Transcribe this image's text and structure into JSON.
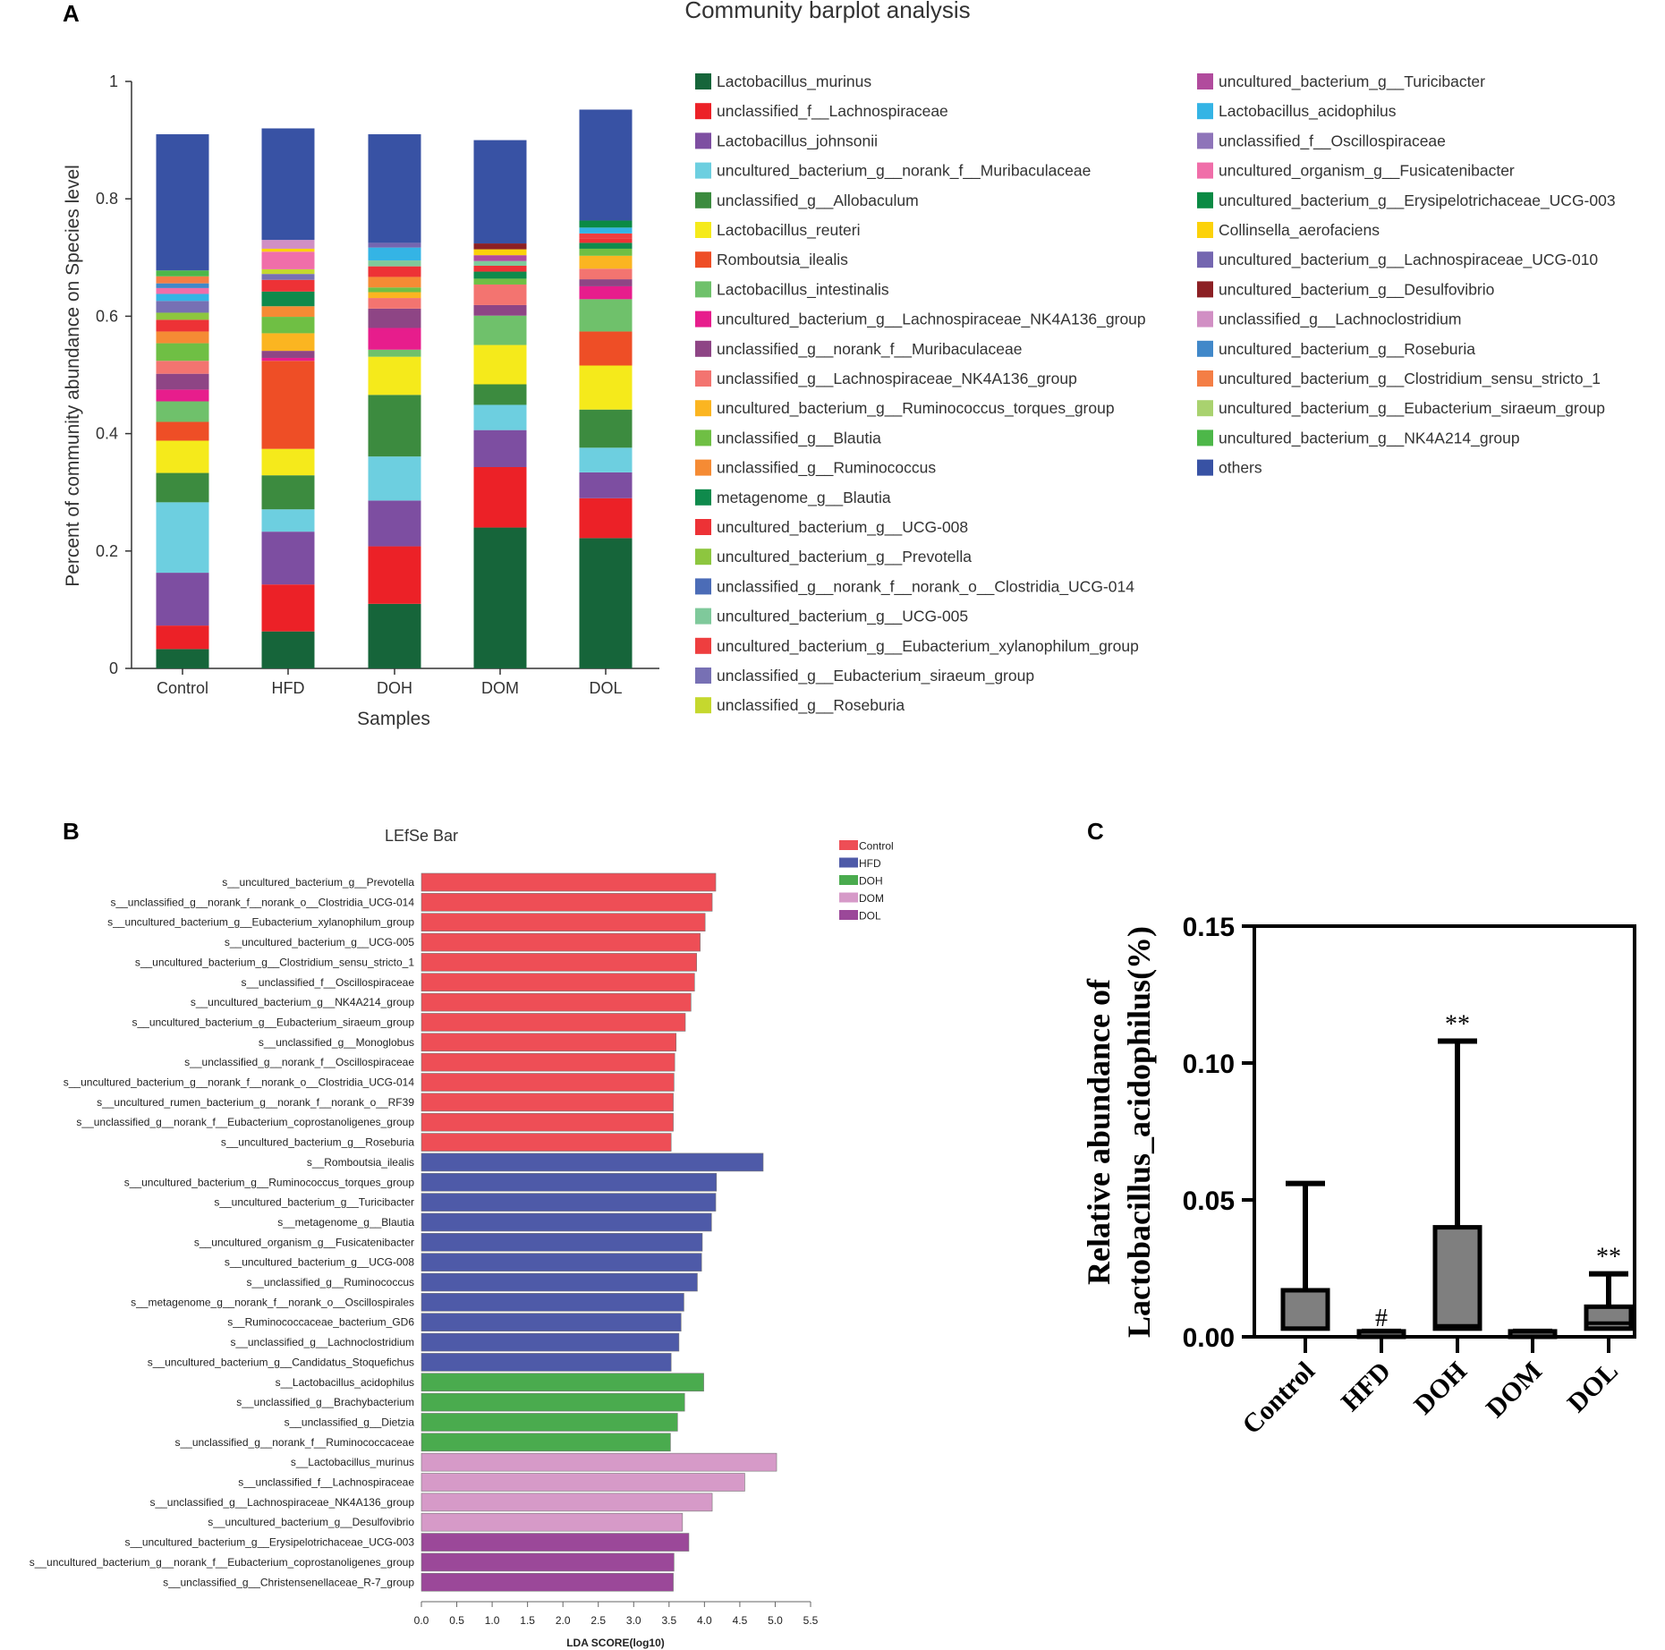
{
  "panels": {
    "a": "A",
    "b": "B",
    "c": "C"
  },
  "chart_data": [
    {
      "id": "A",
      "type": "bar",
      "stacked": true,
      "title": "Community barplot analysis",
      "xlabel": "Samples",
      "ylabel": "Percent of community abundance on Species level",
      "ylim": [
        0,
        1
      ],
      "yticks": [
        "0",
        "0.2",
        "0.4",
        "0.6",
        "0.8",
        "1"
      ],
      "categories": [
        "Control",
        "HFD",
        "DOH",
        "DOM",
        "DOL"
      ],
      "legend_position": "right",
      "series": [
        {
          "name": "Lactobacillus_murinus",
          "color": "#16653a",
          "values": [
            0.033,
            0.063,
            0.11,
            0.24,
            0.222
          ]
        },
        {
          "name": "unclassified_f__Lachnospiraceae",
          "color": "#ec2127",
          "values": [
            0.04,
            0.08,
            0.098,
            0.103,
            0.068
          ]
        },
        {
          "name": "Lactobacillus_johnsonii",
          "color": "#7d4ea1",
          "values": [
            0.09,
            0.09,
            0.078,
            0.063,
            0.044
          ]
        },
        {
          "name": "uncultured_bacterium_g__norank_f__Muribaculaceae",
          "color": "#6dcfe0",
          "values": [
            0.12,
            0.038,
            0.075,
            0.043,
            0.042
          ]
        },
        {
          "name": "unclassified_g__Allobaculum",
          "color": "#3c8b3f",
          "values": [
            0.05,
            0.058,
            0.105,
            0.035,
            0.065
          ]
        },
        {
          "name": "Lactobacillus_reuteri",
          "color": "#f5ea1b",
          "values": [
            0.055,
            0.045,
            0.065,
            0.067,
            0.075
          ]
        },
        {
          "name": "Romboutsia_ilealis",
          "color": "#ee4e26",
          "values": [
            0.032,
            0.15,
            0.0,
            0.0,
            0.058
          ]
        },
        {
          "name": "Lactobacillus_intestinalis",
          "color": "#6fc16b",
          "values": [
            0.035,
            0.0,
            0.012,
            0.05,
            0.055
          ]
        },
        {
          "name": "uncultured_bacterium_g__Lachnospiraceae_NK4A136_group",
          "color": "#e71d8c",
          "values": [
            0.02,
            0.005,
            0.037,
            0.0,
            0.022
          ]
        },
        {
          "name": "unclassified_g__norank_f__Muribaculaceae",
          "color": "#8e4585",
          "values": [
            0.027,
            0.012,
            0.033,
            0.018,
            0.012
          ]
        },
        {
          "name": "unclassified_g__Lachnospiraceae_NK4A136_group",
          "color": "#f37470",
          "values": [
            0.022,
            0.0,
            0.018,
            0.035,
            0.018
          ]
        },
        {
          "name": "uncultured_bacterium_g__Ruminococcus_torques_group",
          "color": "#fbb521",
          "values": [
            0.0,
            0.03,
            0.01,
            0.0,
            0.022
          ]
        },
        {
          "name": "unclassified_g__Blautia",
          "color": "#6fbf44",
          "values": [
            0.03,
            0.028,
            0.008,
            0.01,
            0.012
          ]
        },
        {
          "name": "unclassified_g__Ruminococcus",
          "color": "#f58b34",
          "values": [
            0.02,
            0.018,
            0.018,
            0.0,
            0.0
          ]
        },
        {
          "name": "metagenome_g__Blautia",
          "color": "#0f8a4c",
          "values": [
            0.0,
            0.025,
            0.0,
            0.012,
            0.01
          ]
        },
        {
          "name": "uncultured_bacterium_g__UCG-008",
          "color": "#ed3236",
          "values": [
            0.02,
            0.02,
            0.018,
            0.01,
            0.008
          ]
        },
        {
          "name": "uncultured_bacterium_g__Prevotella",
          "color": "#8dc63f",
          "values": [
            0.012,
            0.0,
            0.0,
            0.0,
            0.0
          ]
        },
        {
          "name": "unclassified_g__norank_f__norank_o__Clostridia_UCG-014",
          "color": "#4b6cb7",
          "values": [
            0.0,
            0.0,
            0.0,
            0.0,
            0.0
          ]
        },
        {
          "name": "uncultured_bacterium_g__UCG-005",
          "color": "#7fc99b",
          "values": [
            0.0,
            0.0,
            0.01,
            0.008,
            0.0
          ]
        },
        {
          "name": "uncultured_bacterium_g__Eubacterium_xylanophilum_group",
          "color": "#ee3e3f",
          "values": [
            0.0,
            0.0,
            0.0,
            0.0,
            0.008
          ]
        },
        {
          "name": "unclassified_g__Eubacterium_siraeum_group",
          "color": "#7770b4",
          "values": [
            0.02,
            0.01,
            0.0,
            0.0,
            0.0
          ]
        },
        {
          "name": "unclassified_g__Roseburia",
          "color": "#c5d82e",
          "values": [
            0.0,
            0.008,
            0.0,
            0.0,
            0.0
          ]
        },
        {
          "name": "uncultured_bacterium_g__Turicibacter",
          "color": "#b14b9d",
          "values": [
            0.0,
            0.0,
            0.0,
            0.01,
            0.0
          ]
        },
        {
          "name": "Lactobacillus_acidophilus",
          "color": "#34b4e5",
          "values": [
            0.012,
            0.0,
            0.022,
            0.0,
            0.01
          ]
        },
        {
          "name": "unclassified_f__Oscillospiraceae",
          "color": "#8e74b9",
          "values": [
            0.0,
            0.0,
            0.0,
            0.0,
            0.0
          ]
        },
        {
          "name": "uncultured_organism_g__Fusicatenibacter",
          "color": "#f06ea9",
          "values": [
            0.01,
            0.03,
            0.0,
            0.0,
            0.0
          ]
        },
        {
          "name": "uncultured_bacterium_g__Erysipelotrichaceae_UCG-003",
          "color": "#0b8a44",
          "values": [
            0.0,
            0.0,
            0.0,
            0.0,
            0.012
          ]
        },
        {
          "name": "Collinsella_aerofaciens",
          "color": "#fcd20a",
          "values": [
            0.0,
            0.005,
            0.0,
            0.01,
            0.0
          ]
        },
        {
          "name": "uncultured_bacterium_g__Lachnospiraceae_UCG-010",
          "color": "#7466b0",
          "values": [
            0.0,
            0.0,
            0.008,
            0.0,
            0.0
          ]
        },
        {
          "name": "uncultured_bacterium_g__Desulfovibrio",
          "color": "#8c2024",
          "values": [
            0.0,
            0.0,
            0.0,
            0.01,
            0.0
          ]
        },
        {
          "name": "unclassified_g__Lachnoclostridium",
          "color": "#d18fc4",
          "values": [
            0.0,
            0.015,
            0.0,
            0.0,
            0.0
          ]
        },
        {
          "name": "uncultured_bacterium_g__Roseburia",
          "color": "#4188c9",
          "values": [
            0.008,
            0.0,
            0.0,
            0.0,
            0.0
          ]
        },
        {
          "name": "uncultured_bacterium_g__Clostridium_sensu_stricto_1",
          "color": "#f47e45",
          "values": [
            0.012,
            0.0,
            0.0,
            0.0,
            0.0
          ]
        },
        {
          "name": "uncultured_bacterium_g__Eubacterium_siraeum_group",
          "color": "#a9d26f",
          "values": [
            0.0,
            0.0,
            0.0,
            0.0,
            0.0
          ]
        },
        {
          "name": "uncultured_bacterium_g__NK4A214_group",
          "color": "#4db749",
          "values": [
            0.01,
            0.0,
            0.0,
            0.0,
            0.0
          ]
        },
        {
          "name": "others",
          "color": "#3852a4",
          "values": [
            0.232,
            0.19,
            0.185,
            0.176,
            0.189
          ]
        }
      ]
    },
    {
      "id": "B",
      "type": "bar",
      "orientation": "horizontal",
      "title": "LEfSe Bar",
      "xlabel": "LDA SCORE(log10)",
      "xlim": [
        0,
        5.5
      ],
      "xticks": [
        "0.0",
        "0.5",
        "1.0",
        "1.5",
        "2.0",
        "2.5",
        "3.0",
        "3.5",
        "4.0",
        "4.5",
        "5.0",
        "5.5"
      ],
      "legend_position": "top-right",
      "groups": [
        {
          "name": "Control",
          "color": "#ee4e56"
        },
        {
          "name": "HFD",
          "color": "#4e5aa8"
        },
        {
          "name": "DOH",
          "color": "#4aab4e"
        },
        {
          "name": "DOM",
          "color": "#d69ac8"
        },
        {
          "name": "DOL",
          "color": "#9b4899"
        }
      ],
      "bars": [
        {
          "label": "s__uncultured_bacterium_g__Prevotella",
          "value": 4.16,
          "group": 0
        },
        {
          "label": "s__unclassified_g__norank_f__norank_o__Clostridia_UCG-014",
          "value": 4.11,
          "group": 0
        },
        {
          "label": "s__uncultured_bacterium_g__Eubacterium_xylanophilum_group",
          "value": 4.01,
          "group": 0
        },
        {
          "label": "s__uncultured_bacterium_g__UCG-005",
          "value": 3.94,
          "group": 0
        },
        {
          "label": "s__uncultured_bacterium_g__Clostridium_sensu_stricto_1",
          "value": 3.89,
          "group": 0
        },
        {
          "label": "s__unclassified_f__Oscillospiraceae",
          "value": 3.86,
          "group": 0
        },
        {
          "label": "s__uncultured_bacterium_g__NK4A214_group",
          "value": 3.81,
          "group": 0
        },
        {
          "label": "s__uncultured_bacterium_g__Eubacterium_siraeum_group",
          "value": 3.73,
          "group": 0
        },
        {
          "label": "s__unclassified_g__Monoglobus",
          "value": 3.6,
          "group": 0
        },
        {
          "label": "s__unclassified_g__norank_f__Oscillospiraceae",
          "value": 3.58,
          "group": 0
        },
        {
          "label": "s__uncultured_bacterium_g__norank_f__norank_o__Clostridia_UCG-014",
          "value": 3.57,
          "group": 0
        },
        {
          "label": "s__uncultured_rumen_bacterium_g__norank_f__norank_o__RF39",
          "value": 3.56,
          "group": 0
        },
        {
          "label": "s__unclassified_g__norank_f__Eubacterium_coprostanoligenes_group",
          "value": 3.56,
          "group": 0
        },
        {
          "label": "s__uncultured_bacterium_g__Roseburia",
          "value": 3.53,
          "group": 0
        },
        {
          "label": "s__Romboutsia_ilealis",
          "value": 4.83,
          "group": 1
        },
        {
          "label": "s__uncultured_bacterium_g__Ruminococcus_torques_group",
          "value": 4.17,
          "group": 1
        },
        {
          "label": "s__uncultured_bacterium_g__Turicibacter",
          "value": 4.16,
          "group": 1
        },
        {
          "label": "s__metagenome_g__Blautia",
          "value": 4.1,
          "group": 1
        },
        {
          "label": "s__uncultured_organism_g__Fusicatenibacter",
          "value": 3.97,
          "group": 1
        },
        {
          "label": "s__uncultured_bacterium_g__UCG-008",
          "value": 3.96,
          "group": 1
        },
        {
          "label": "s__unclassified_g__Ruminococcus",
          "value": 3.9,
          "group": 1
        },
        {
          "label": "s__metagenome_g__norank_f__norank_o__Oscillospirales",
          "value": 3.71,
          "group": 1
        },
        {
          "label": "s__Ruminococcaceae_bacterium_GD6",
          "value": 3.67,
          "group": 1
        },
        {
          "label": "s__unclassified_g__Lachnoclostridium",
          "value": 3.64,
          "group": 1
        },
        {
          "label": "s__uncultured_bacterium_g__Candidatus_Stoquefichus",
          "value": 3.53,
          "group": 1
        },
        {
          "label": "s__Lactobacillus_acidophilus",
          "value": 3.99,
          "group": 2
        },
        {
          "label": "s__unclassified_g__Brachybacterium",
          "value": 3.72,
          "group": 2
        },
        {
          "label": "s__unclassified_g__Dietzia",
          "value": 3.62,
          "group": 2
        },
        {
          "label": "s__unclassified_g__norank_f__Ruminococcaceae",
          "value": 3.52,
          "group": 2
        },
        {
          "label": "s__Lactobacillus_murinus",
          "value": 5.02,
          "group": 3
        },
        {
          "label": "s__unclassified_f__Lachnospiraceae",
          "value": 4.57,
          "group": 3
        },
        {
          "label": "s__unclassified_g__Lachnospiraceae_NK4A136_group",
          "value": 4.11,
          "group": 3
        },
        {
          "label": "s__uncultured_bacterium_g__Desulfovibrio",
          "value": 3.69,
          "group": 3
        },
        {
          "label": "s__uncultured_bacterium_g__Erysipelotrichaceae_UCG-003",
          "value": 3.78,
          "group": 4
        },
        {
          "label": "s__uncultured_bacterium_g__norank_f__Eubacterium_coprostanoligenes_group",
          "value": 3.57,
          "group": 4
        },
        {
          "label": "s__unclassified_g__Christensenellaceae_R-7_group",
          "value": 3.56,
          "group": 4
        }
      ]
    },
    {
      "id": "C",
      "type": "bar",
      "subtype": "box",
      "ylabel_lines": [
        "Relative abundance of",
        "Lactobacillus_acidophilus(%)"
      ],
      "ylim": [
        0,
        0.15
      ],
      "yticks": [
        "0.00",
        "0.05",
        "0.10",
        "0.15"
      ],
      "categories": [
        "Control",
        "HFD",
        "DOH",
        "DOM",
        "DOL"
      ],
      "boxes": [
        {
          "q1": 0.003,
          "median": 0.003,
          "q3": 0.017,
          "max": 0.056,
          "sig": ""
        },
        {
          "q1": 0.0,
          "median": 0.0,
          "q3": 0.002,
          "max": 0.002,
          "sig": "#"
        },
        {
          "q1": 0.003,
          "median": 0.004,
          "q3": 0.04,
          "max": 0.108,
          "sig": "**"
        },
        {
          "q1": 0.0,
          "median": 0.0,
          "q3": 0.002,
          "max": 0.002,
          "sig": ""
        },
        {
          "q1": 0.003,
          "median": 0.005,
          "q3": 0.011,
          "max": 0.023,
          "sig": "**"
        }
      ],
      "box_fill": "#7f7f7f"
    }
  ]
}
